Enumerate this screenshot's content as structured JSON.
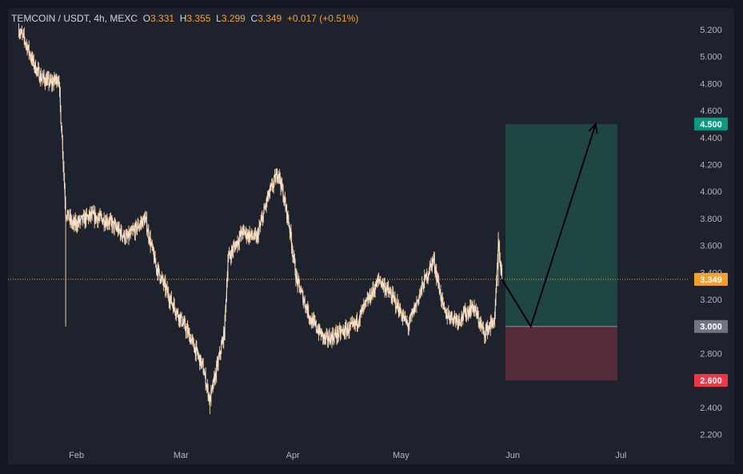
{
  "header": {
    "symbol": "TEMCOIN / USDT, 4h, MEXC",
    "open_label": "O",
    "open": "3.331",
    "high_label": "H",
    "high": "3.355",
    "low_label": "L",
    "low": "3.299",
    "close_label": "C",
    "close": "3.349",
    "change": "+0.017 (+0.51%)"
  },
  "colors": {
    "background": "#1e222d",
    "frame": "#131722",
    "price_line": "#f7a12c",
    "candle": "#ffd9b0",
    "profit_zone": "#1f4a45",
    "loss_zone": "#5b2d3b",
    "target_badge": "#089981",
    "stop_badge": "#f23645",
    "entry_badge": "#707582",
    "axis_text": "#b2b5be"
  },
  "chart_data": {
    "type": "line",
    "title": "TEMCOIN / USDT, 4h, MEXC",
    "x_ticks": [
      "Feb",
      "Mar",
      "Apr",
      "May",
      "Jun",
      "Jul"
    ],
    "y_ticks": [
      "5.200",
      "5.000",
      "4.800",
      "4.600",
      "4.400",
      "4.200",
      "4.000",
      "3.800",
      "3.600",
      "3.400",
      "3.200",
      "3.000",
      "2.800",
      "2.600",
      "2.400",
      "2.200"
    ],
    "ylim": [
      2.12,
      5.36
    ],
    "grid": false,
    "series": [
      {
        "values": [
          {
            "x": "2024-01-16",
            "y": 5.2
          },
          {
            "x": "2024-01-18",
            "y": 5.1
          },
          {
            "x": "2024-01-20",
            "y": 4.95
          },
          {
            "x": "2024-01-22",
            "y": 4.85
          },
          {
            "x": "2024-01-25",
            "y": 4.8
          },
          {
            "x": "2024-01-27",
            "y": 4.85
          },
          {
            "x": "2024-01-28",
            "y": 4.4
          },
          {
            "x": "2024-01-29",
            "y": 3.85
          },
          {
            "x": "2024-01-31",
            "y": 3.75
          },
          {
            "x": "2024-02-05",
            "y": 3.82
          },
          {
            "x": "2024-02-10",
            "y": 3.78
          },
          {
            "x": "2024-02-15",
            "y": 3.65
          },
          {
            "x": "2024-02-20",
            "y": 3.8
          },
          {
            "x": "2024-02-23",
            "y": 3.45
          },
          {
            "x": "2024-02-27",
            "y": 3.2
          },
          {
            "x": "2024-03-03",
            "y": 2.95
          },
          {
            "x": "2024-03-07",
            "y": 2.7
          },
          {
            "x": "2024-03-09",
            "y": 2.45
          },
          {
            "x": "2024-03-13",
            "y": 2.95
          },
          {
            "x": "2024-03-14",
            "y": 3.5
          },
          {
            "x": "2024-03-18",
            "y": 3.7
          },
          {
            "x": "2024-03-22",
            "y": 3.65
          },
          {
            "x": "2024-03-25",
            "y": 3.95
          },
          {
            "x": "2024-03-28",
            "y": 4.15
          },
          {
            "x": "2024-03-31",
            "y": 3.75
          },
          {
            "x": "2024-04-02",
            "y": 3.35
          },
          {
            "x": "2024-04-06",
            "y": 3.05
          },
          {
            "x": "2024-04-10",
            "y": 2.9
          },
          {
            "x": "2024-04-14",
            "y": 2.95
          },
          {
            "x": "2024-04-18",
            "y": 3.0
          },
          {
            "x": "2024-04-22",
            "y": 3.2
          },
          {
            "x": "2024-04-25",
            "y": 3.35
          },
          {
            "x": "2024-04-29",
            "y": 3.2
          },
          {
            "x": "2024-05-03",
            "y": 3.0
          },
          {
            "x": "2024-05-07",
            "y": 3.3
          },
          {
            "x": "2024-05-10",
            "y": 3.5
          },
          {
            "x": "2024-05-13",
            "y": 3.1
          },
          {
            "x": "2024-05-17",
            "y": 3.05
          },
          {
            "x": "2024-05-21",
            "y": 3.15
          },
          {
            "x": "2024-05-24",
            "y": 2.95
          },
          {
            "x": "2024-05-27",
            "y": 3.05
          },
          {
            "x": "2024-05-28",
            "y": 3.6
          },
          {
            "x": "2024-05-29",
            "y": 3.349
          }
        ]
      }
    ],
    "x_ticks_dates": [
      "2024-02-01",
      "2024-03-01",
      "2024-04-01",
      "2024-05-01",
      "2024-06-01",
      "2024-07-01"
    ],
    "current_price": 3.349,
    "position": {
      "start": "2024-05-30",
      "end": "2024-06-30",
      "target": 4.5,
      "entry": 3.0,
      "stop": 2.6,
      "target_label": "4.500",
      "entry_label": "3.000",
      "stop_label": "2.600",
      "price_label": "3.349"
    },
    "projection": [
      {
        "x": "2024-05-29",
        "y": 3.349
      },
      {
        "x": "2024-06-06",
        "y": 3.0
      },
      {
        "x": "2024-06-24",
        "y": 4.5
      }
    ]
  }
}
